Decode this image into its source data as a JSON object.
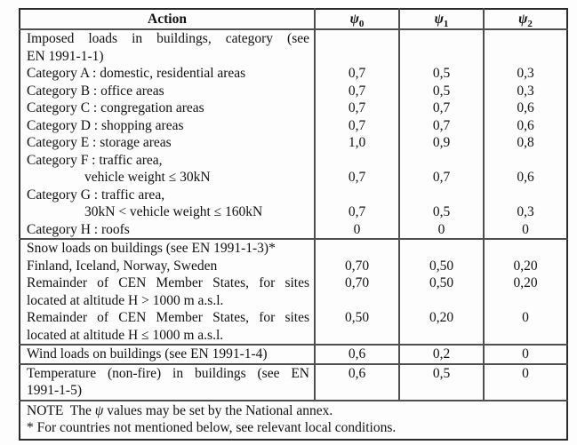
{
  "page": {
    "background": "#fdfdfd",
    "text_color": "#121212",
    "border_outer_color": "#2b2b2b",
    "border_inner_color": "#4f4f4f"
  },
  "table": {
    "header": {
      "action_label": "Action",
      "psi_columns": [
        {
          "symbol": "ψ",
          "sub": "0"
        },
        {
          "symbol": "ψ",
          "sub": "1"
        },
        {
          "symbol": "ψ",
          "sub": "2"
        }
      ]
    },
    "rows": [
      {
        "lines": [
          "Imposed loads in buildings, category (see",
          "EN 1991-1-1)"
        ],
        "values": [
          "",
          "",
          ""
        ],
        "justify": true,
        "indent_second_line": false,
        "values_align": "top",
        "divider_above": false
      },
      {
        "lines": [
          "Category A : domestic, residential areas"
        ],
        "values": [
          "0,7",
          "0,5",
          "0,3"
        ],
        "justify": false,
        "indent_second_line": false,
        "values_align": "middle",
        "divider_above": false
      },
      {
        "lines": [
          "Category B : office areas"
        ],
        "values": [
          "0,7",
          "0,5",
          "0,3"
        ],
        "justify": false,
        "indent_second_line": false,
        "values_align": "middle",
        "divider_above": false
      },
      {
        "lines": [
          "Category C : congregation areas"
        ],
        "values": [
          "0,7",
          "0,7",
          "0,6"
        ],
        "justify": false,
        "indent_second_line": false,
        "values_align": "middle",
        "divider_above": false
      },
      {
        "lines": [
          "Category D : shopping areas"
        ],
        "values": [
          "0,7",
          "0,7",
          "0,6"
        ],
        "justify": false,
        "indent_second_line": false,
        "values_align": "middle",
        "divider_above": false
      },
      {
        "lines": [
          "Category E : storage areas"
        ],
        "values": [
          "1,0",
          "0,9",
          "0,8"
        ],
        "justify": false,
        "indent_second_line": false,
        "values_align": "middle",
        "divider_above": false
      },
      {
        "lines": [
          "Category F : traffic area,",
          "vehicle weight ≤ 30kN"
        ],
        "values": [
          "0,7",
          "0,7",
          "0,6"
        ],
        "justify": false,
        "indent_second_line": true,
        "values_align": "bottom",
        "divider_above": false
      },
      {
        "lines": [
          "Category G : traffic area,",
          "30kN < vehicle weight ≤ 160kN"
        ],
        "values": [
          "0,7",
          "0,5",
          "0,3"
        ],
        "justify": false,
        "indent_second_line": true,
        "values_align": "bottom",
        "divider_above": false
      },
      {
        "lines": [
          "Category H : roofs"
        ],
        "values": [
          "0",
          "0",
          "0"
        ],
        "justify": false,
        "indent_second_line": false,
        "values_align": "middle",
        "divider_above": false
      },
      {
        "lines": [
          "Snow loads on buildings (see EN 1991-1-3)*"
        ],
        "values": [
          "",
          "",
          ""
        ],
        "justify": false,
        "indent_second_line": false,
        "values_align": "middle",
        "divider_above": true
      },
      {
        "lines": [
          "Finland, Iceland, Norway, Sweden"
        ],
        "values": [
          "0,70",
          "0,50",
          "0,20"
        ],
        "justify": false,
        "indent_second_line": false,
        "values_align": "middle",
        "divider_above": false
      },
      {
        "lines": [
          "Remainder of CEN Member States, for sites",
          "located at altitude H > 1000 m a.s.l."
        ],
        "values": [
          "0,70",
          "0,50",
          "0,20"
        ],
        "justify": true,
        "indent_second_line": false,
        "values_align": "top",
        "divider_above": false
      },
      {
        "lines": [
          "Remainder of CEN Member States, for sites",
          "located at altitude H ≤ 1000 m a.s.l."
        ],
        "values": [
          "0,50",
          "0,20",
          "0"
        ],
        "justify": true,
        "indent_second_line": false,
        "values_align": "top",
        "divider_above": false
      },
      {
        "lines": [
          "Wind loads on buildings (see EN 1991-1-4)"
        ],
        "values": [
          "0,6",
          "0,2",
          "0"
        ],
        "justify": false,
        "indent_second_line": false,
        "values_align": "middle",
        "divider_above": true
      },
      {
        "lines": [
          "Temperature (non-fire) in buildings (see EN",
          "1991-1-5)"
        ],
        "values": [
          "0,6",
          "0,5",
          "0"
        ],
        "justify": true,
        "indent_second_line": false,
        "values_align": "top",
        "divider_above": true
      }
    ],
    "note": {
      "prefix": "NOTE  The ",
      "symbol": "ψ",
      "suffix": " values may be set by the National annex.",
      "footnote": "* For countries not mentioned below, see relevant local conditions."
    }
  }
}
